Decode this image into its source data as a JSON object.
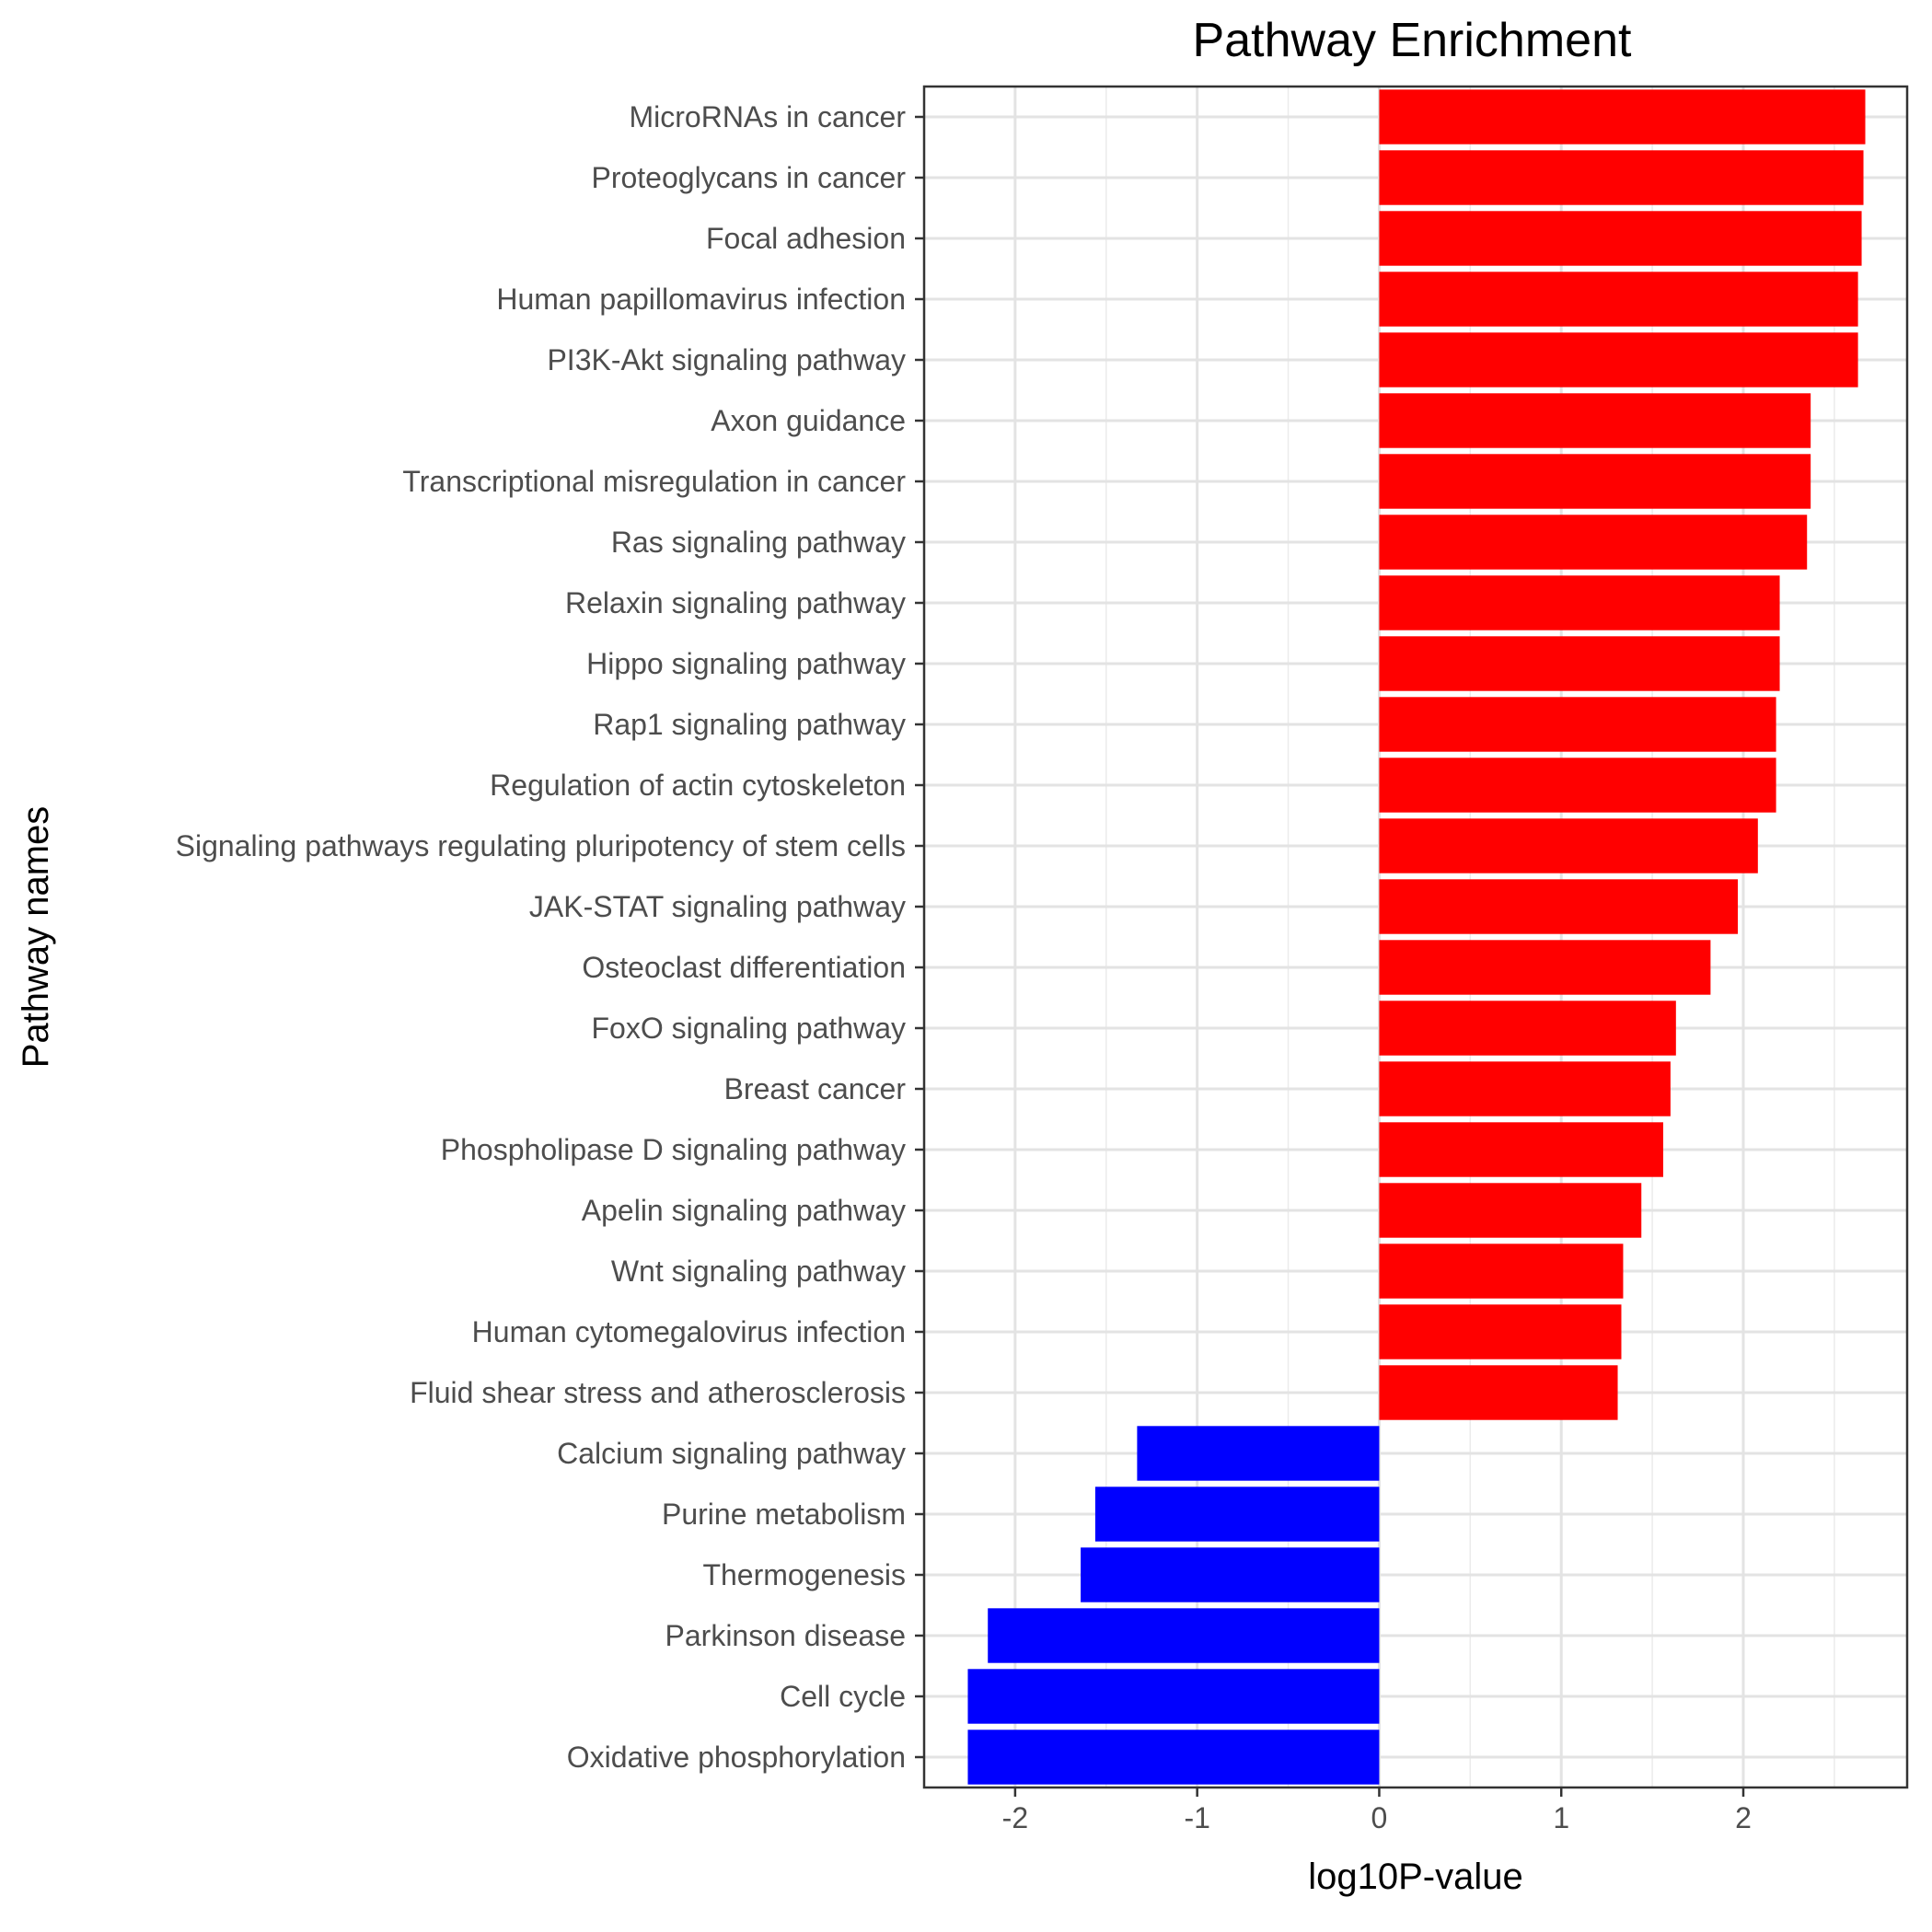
{
  "chart_data": {
    "type": "bar",
    "orientation": "horizontal",
    "title": "Pathway Enrichment",
    "xlabel": "log10P-value",
    "ylabel": "Pathway names",
    "xlim": [
      -2.5,
      2.9
    ],
    "x_ticks": [
      -2,
      -1,
      0,
      1,
      2
    ],
    "x_tick_labels": [
      "-2",
      "-1",
      "0",
      "1",
      "2"
    ],
    "grid": true,
    "legend": "none",
    "colors": {
      "positive": "#ff0000",
      "negative": "#0000ff"
    },
    "categories": [
      "MicroRNAs in cancer",
      "Proteoglycans in cancer",
      "Focal adhesion",
      "Human papillomavirus infection",
      "PI3K-Akt signaling pathway",
      "Axon guidance",
      "Transcriptional misregulation in cancer",
      "Ras signaling pathway",
      "Relaxin signaling pathway",
      "Hippo signaling pathway",
      "Rap1 signaling pathway",
      "Regulation of actin cytoskeleton",
      "Signaling pathways regulating pluripotency of stem cells",
      "JAK-STAT signaling pathway",
      "Osteoclast differentiation",
      "FoxO signaling pathway",
      "Breast cancer",
      "Phospholipase D signaling pathway",
      "Apelin signaling pathway",
      "Wnt signaling pathway",
      "Human cytomegalovirus infection",
      "Fluid shear stress and atherosclerosis",
      "Calcium signaling pathway",
      "Purine metabolism",
      "Thermogenesis",
      "Parkinson disease",
      "Cell cycle",
      "Oxidative phosphorylation"
    ],
    "values": [
      2.67,
      2.66,
      2.65,
      2.63,
      2.63,
      2.37,
      2.37,
      2.35,
      2.2,
      2.2,
      2.18,
      2.18,
      2.08,
      1.97,
      1.82,
      1.63,
      1.6,
      1.56,
      1.44,
      1.34,
      1.33,
      1.31,
      -1.33,
      -1.56,
      -1.64,
      -2.15,
      -2.26,
      -2.26
    ]
  }
}
